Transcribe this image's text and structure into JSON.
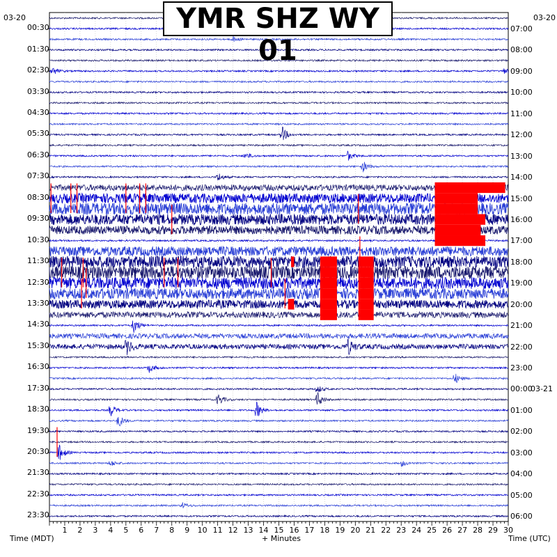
{
  "chart_data": {
    "type": "helicorder",
    "title": "YMR SHZ WY 01",
    "left_date": "03-20",
    "right_date_top": "03-20",
    "right_date_next": "03-21",
    "left_axis_label": "Time (MDT)",
    "right_axis_label": "Time (UTC)",
    "x_axis_label": "+ Minutes",
    "x_ticks": [
      "1",
      "2",
      "3",
      "4",
      "5",
      "6",
      "7",
      "8",
      "9",
      "10",
      "11",
      "12",
      "13",
      "14",
      "15",
      "16",
      "17",
      "18",
      "19",
      "20",
      "21",
      "22",
      "23",
      "24",
      "25",
      "26",
      "27",
      "28",
      "29",
      "30"
    ],
    "xlim": [
      0,
      30
    ],
    "left_time_labels": [
      "00:30",
      "01:30",
      "02:30",
      "03:30",
      "04:30",
      "05:30",
      "06:30",
      "07:30",
      "08:30",
      "09:30",
      "10:30",
      "11:30",
      "12:30",
      "13:30",
      "14:30",
      "15:30",
      "16:30",
      "17:30",
      "18:30",
      "19:30",
      "20:30",
      "21:30",
      "22:30",
      "23:30"
    ],
    "right_time_labels": [
      "07:00",
      "08:00",
      "09:00",
      "10:00",
      "11:00",
      "12:00",
      "13:00",
      "14:00",
      "15:00",
      "16:00",
      "17:00",
      "18:00",
      "19:00",
      "20:00",
      "21:00",
      "22:00",
      "23:00",
      "00:00",
      "01:00",
      "02:00",
      "03:00",
      "04:00",
      "05:00",
      "06:00"
    ],
    "trace_count": 48,
    "trace_colors": [
      "#1a1a6e",
      "#0000d0",
      "#2a3fd6",
      "#000080"
    ],
    "clip_color": "#ff0000",
    "noisy_band_traces": [
      {
        "trace": 16,
        "level": 0.4,
        "xmin": 0,
        "xmax": 30
      },
      {
        "trace": 17,
        "level": 0.7,
        "xmin": 0,
        "xmax": 30
      },
      {
        "trace": 18,
        "level": 0.9,
        "xmin": 0,
        "xmax": 30
      },
      {
        "trace": 19,
        "level": 0.8,
        "xmin": 0,
        "xmax": 30
      },
      {
        "trace": 20,
        "level": 0.6,
        "xmin": 0,
        "xmax": 30
      },
      {
        "trace": 22,
        "level": 0.7,
        "xmin": 0,
        "xmax": 30
      },
      {
        "trace": 23,
        "level": 0.9,
        "xmin": 0,
        "xmax": 30
      },
      {
        "trace": 24,
        "level": 1.0,
        "xmin": 0,
        "xmax": 30
      },
      {
        "trace": 25,
        "level": 0.9,
        "xmin": 0,
        "xmax": 30
      },
      {
        "trace": 26,
        "level": 0.8,
        "xmin": 0,
        "xmax": 30
      },
      {
        "trace": 27,
        "level": 0.6,
        "xmin": 0,
        "xmax": 30
      },
      {
        "trace": 28,
        "level": 0.4,
        "xmin": 0,
        "xmax": 30
      },
      {
        "trace": 30,
        "level": 0.3,
        "xmin": 0,
        "xmax": 30
      },
      {
        "trace": 31,
        "level": 0.3,
        "xmin": 0,
        "xmax": 30
      }
    ],
    "events": [
      {
        "trace": 2,
        "minute": 12.0,
        "amp": 0.4
      },
      {
        "trace": 5,
        "minute": 0.2,
        "amp": 0.6
      },
      {
        "trace": 5,
        "minute": 29.7,
        "amp": 0.4
      },
      {
        "trace": 11,
        "minute": 15.2,
        "amp": 1.2
      },
      {
        "trace": 13,
        "minute": 12.8,
        "amp": 0.5
      },
      {
        "trace": 13,
        "minute": 19.5,
        "amp": 0.7
      },
      {
        "trace": 14,
        "minute": 20.5,
        "amp": 0.8
      },
      {
        "trace": 15,
        "minute": 11.0,
        "amp": 0.7
      },
      {
        "trace": 29,
        "minute": 5.5,
        "amp": 1.2
      },
      {
        "trace": 31,
        "minute": 5.0,
        "amp": 1.2
      },
      {
        "trace": 31,
        "minute": 19.5,
        "amp": 1.1
      },
      {
        "trace": 33,
        "minute": 6.5,
        "amp": 0.7
      },
      {
        "trace": 34,
        "minute": 26.5,
        "amp": 0.8
      },
      {
        "trace": 35,
        "minute": 17.5,
        "amp": 0.6
      },
      {
        "trace": 36,
        "minute": 11.0,
        "amp": 1.0
      },
      {
        "trace": 36,
        "minute": 17.5,
        "amp": 1.2
      },
      {
        "trace": 37,
        "minute": 4.0,
        "amp": 0.9
      },
      {
        "trace": 37,
        "minute": 13.5,
        "amp": 1.4
      },
      {
        "trace": 38,
        "minute": 4.5,
        "amp": 1.0
      },
      {
        "trace": 41,
        "minute": 0.6,
        "amp": 1.4
      },
      {
        "trace": 42,
        "minute": 4.0,
        "amp": 0.5
      },
      {
        "trace": 42,
        "minute": 23.0,
        "amp": 0.5
      },
      {
        "trace": 46,
        "minute": 8.7,
        "amp": 0.4
      }
    ],
    "clipped_segments": [
      {
        "trace": 16,
        "xmin": 25.2,
        "xmax": 29.8
      },
      {
        "trace": 17,
        "xmin": 25.2,
        "xmax": 28.0
      },
      {
        "trace": 18,
        "xmin": 25.2,
        "xmax": 28.0
      },
      {
        "trace": 19,
        "xmin": 25.2,
        "xmax": 28.5
      },
      {
        "trace": 20,
        "xmin": 25.2,
        "xmax": 28.2
      },
      {
        "trace": 21,
        "xmin": 25.2,
        "xmax": 28.5
      },
      {
        "trace": 23,
        "xmin": 15.8,
        "xmax": 16.0
      },
      {
        "trace": 23,
        "xmin": 17.7,
        "xmax": 18.8
      },
      {
        "trace": 23,
        "xmin": 20.2,
        "xmax": 21.2
      },
      {
        "trace": 24,
        "xmin": 17.7,
        "xmax": 18.8
      },
      {
        "trace": 24,
        "xmin": 20.2,
        "xmax": 21.2
      },
      {
        "trace": 25,
        "xmin": 17.7,
        "xmax": 18.8
      },
      {
        "trace": 25,
        "xmin": 20.2,
        "xmax": 21.2
      },
      {
        "trace": 26,
        "xmin": 17.7,
        "xmax": 18.8
      },
      {
        "trace": 26,
        "xmin": 20.2,
        "xmax": 21.2
      },
      {
        "trace": 27,
        "xmin": 15.6,
        "xmax": 16.0
      },
      {
        "trace": 27,
        "xmin": 17.7,
        "xmax": 18.8
      },
      {
        "trace": 27,
        "xmin": 20.2,
        "xmax": 21.2
      },
      {
        "trace": 28,
        "xmin": 17.7,
        "xmax": 18.8
      },
      {
        "trace": 28,
        "xmin": 20.2,
        "xmax": 21.2
      }
    ],
    "clip_spikes": [
      {
        "trace": 17,
        "minute": 0.1
      },
      {
        "trace": 17,
        "minute": 1.4
      },
      {
        "trace": 17,
        "minute": 1.8
      },
      {
        "trace": 17,
        "minute": 5.0
      },
      {
        "trace": 17,
        "minute": 5.9
      },
      {
        "trace": 17,
        "minute": 6.3
      },
      {
        "trace": 18,
        "minute": 20.2
      },
      {
        "trace": 19,
        "minute": 8.0
      },
      {
        "trace": 22,
        "minute": 20.3
      },
      {
        "trace": 24,
        "minute": 0.8
      },
      {
        "trace": 24,
        "minute": 2.2
      },
      {
        "trace": 24,
        "minute": 7.5
      },
      {
        "trace": 24,
        "minute": 8.4
      },
      {
        "trace": 24,
        "minute": 14.5
      },
      {
        "trace": 25,
        "minute": 2.4
      },
      {
        "trace": 26,
        "minute": 2.1
      },
      {
        "trace": 26,
        "minute": 15.4
      },
      {
        "trace": 40,
        "minute": 0.5
      }
    ]
  }
}
